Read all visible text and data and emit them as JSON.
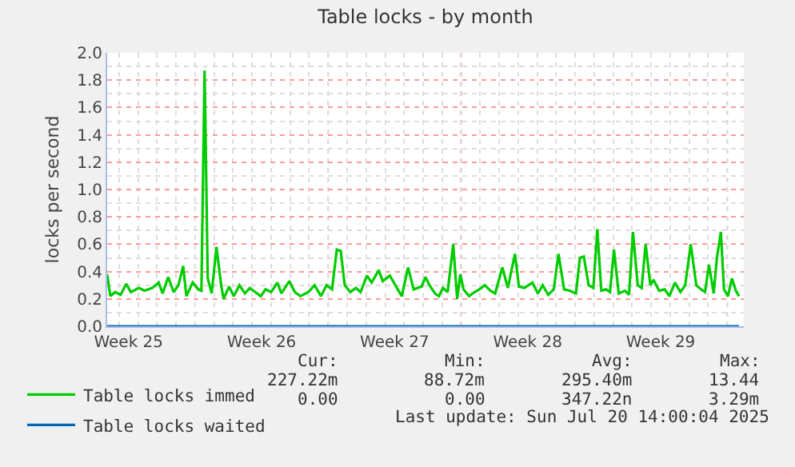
{
  "chart_data": {
    "type": "line",
    "title": "Table locks - by month",
    "ylabel": "locks per second",
    "xlim": [
      "2025-06-17T09:00",
      "2025-07-20T21:00"
    ],
    "xticks": [
      {
        "value": "2025-06-18T12:00",
        "label": "Week 25"
      },
      {
        "value": "2025-06-25T12:00",
        "label": "Week 26"
      },
      {
        "value": "2025-07-02T12:00",
        "label": "Week 27"
      },
      {
        "value": "2025-07-09T12:00",
        "label": "Week 28"
      },
      {
        "value": "2025-07-16T12:00",
        "label": "Week 29"
      }
    ],
    "ylim": [
      0,
      2.0
    ],
    "yticks": [
      {
        "value": 0,
        "label": "0.0"
      },
      {
        "value": 0.2,
        "label": "0.2"
      },
      {
        "value": 0.4,
        "label": "0.4"
      },
      {
        "value": 0.6,
        "label": "0.6"
      },
      {
        "value": 0.8,
        "label": "0.8"
      },
      {
        "value": 1.0,
        "label": "1.0"
      },
      {
        "value": 1.2,
        "label": "1.2"
      },
      {
        "value": 1.4,
        "label": "1.4"
      },
      {
        "value": 1.6,
        "label": "1.6"
      },
      {
        "value": 1.8,
        "label": "1.8"
      },
      {
        "value": 2.0,
        "label": "2.0"
      }
    ],
    "grid": true,
    "legend": "bottom left",
    "marker": "none",
    "line_style": "solid",
    "ref_lines": [
      {
        "axis": "x",
        "value": "2025-06-22",
        "color": "#ff8080",
        "line_style": "dotted"
      },
      {
        "axis": "x",
        "value": "2025-06-29",
        "color": "#ff8080",
        "line_style": "dotted"
      },
      {
        "axis": "x",
        "value": "2025-07-06",
        "color": "#ff8080",
        "line_style": "dotted"
      },
      {
        "axis": "x",
        "value": "2025-07-13",
        "color": "#ff8080",
        "line_style": "dotted"
      },
      {
        "axis": "x",
        "value": "2025-07-20",
        "color": "#ff8080",
        "line_style": "dotted"
      }
    ],
    "series": [
      {
        "name": "Table locks immed",
        "color": "#00cc00",
        "x": [
          "2025-06-17T09:00",
          "2025-06-17T13:00",
          "2025-06-17T19:00",
          "2025-06-18T02:00",
          "2025-06-18T09:00",
          "2025-06-18T15:00",
          "2025-06-19T01:00",
          "2025-06-19T08:00",
          "2025-06-19T18:00",
          "2025-06-20T02:00",
          "2025-06-20T07:00",
          "2025-06-20T14:00",
          "2025-06-20T21:00",
          "2025-06-21T03:00",
          "2025-06-21T09:00",
          "2025-06-21T13:00",
          "2025-06-21T21:00",
          "2025-06-22T04:00",
          "2025-06-22T08:00",
          "2025-06-22T12:00",
          "2025-06-22T16:00",
          "2025-06-22T21:00",
          "2025-06-23T03:00",
          "2025-06-23T09:00",
          "2025-06-23T12:00",
          "2025-06-23T19:00",
          "2025-06-24T01:00",
          "2025-06-24T08:00",
          "2025-06-24T15:00",
          "2025-06-24T21:00",
          "2025-06-25T04:00",
          "2025-06-25T11:00",
          "2025-06-25T17:00",
          "2025-06-26T00:00",
          "2025-06-26T08:00",
          "2025-06-26T13:00",
          "2025-06-26T23:00",
          "2025-06-27T06:00",
          "2025-06-27T13:00",
          "2025-06-27T23:00",
          "2025-06-28T07:00",
          "2025-06-28T15:00",
          "2025-06-28T22:00",
          "2025-06-29T05:00",
          "2025-06-29T11:00",
          "2025-06-29T16:00",
          "2025-06-29T21:00",
          "2025-06-30T04:00",
          "2025-06-30T11:00",
          "2025-06-30T17:00",
          "2025-07-01T01:00",
          "2025-07-01T07:00",
          "2025-07-01T16:00",
          "2025-07-01T21:00",
          "2025-07-02T06:00",
          "2025-07-02T13:00",
          "2025-07-02T21:00",
          "2025-07-03T05:00",
          "2025-07-03T12:00",
          "2025-07-03T22:00",
          "2025-07-04T03:00",
          "2025-07-04T08:00",
          "2025-07-04T15:00",
          "2025-07-04T20:00",
          "2025-07-05T01:00",
          "2025-07-05T07:00",
          "2025-07-05T14:00",
          "2025-07-05T19:00",
          "2025-07-05T23:00",
          "2025-07-06T03:00",
          "2025-07-06T10:00",
          "2025-07-06T17:00",
          "2025-07-06T23:00",
          "2025-07-07T06:00",
          "2025-07-07T13:00",
          "2025-07-07T19:00",
          "2025-07-08T04:00",
          "2025-07-08T11:00",
          "2025-07-08T20:00",
          "2025-07-09T01:00",
          "2025-07-09T08:00",
          "2025-07-09T18:00",
          "2025-07-10T01:00",
          "2025-07-10T07:00",
          "2025-07-10T14:00",
          "2025-07-10T21:00",
          "2025-07-11T03:00",
          "2025-07-11T10:00",
          "2025-07-11T17:00",
          "2025-07-12T01:00",
          "2025-07-12T06:00",
          "2025-07-12T11:00",
          "2025-07-12T17:00",
          "2025-07-12T23:00",
          "2025-07-13T04:00",
          "2025-07-13T09:00",
          "2025-07-13T15:00",
          "2025-07-13T20:00",
          "2025-07-14T01:00",
          "2025-07-14T07:00",
          "2025-07-14T15:00",
          "2025-07-14T20:00",
          "2025-07-15T01:00",
          "2025-07-15T07:00",
          "2025-07-15T12:00",
          "2025-07-15T17:00",
          "2025-07-15T23:00",
          "2025-07-16T03:00",
          "2025-07-16T10:00",
          "2025-07-16T17:00",
          "2025-07-16T23:00",
          "2025-07-17T06:00",
          "2025-07-17T13:00",
          "2025-07-17T19:00",
          "2025-07-18T02:00",
          "2025-07-18T09:00",
          "2025-07-18T15:00",
          "2025-07-18T20:00",
          "2025-07-19T01:00",
          "2025-07-19T07:00",
          "2025-07-19T11:00",
          "2025-07-19T16:00",
          "2025-07-19T20:00",
          "2025-07-20T01:00",
          "2025-07-20T06:00",
          "2025-07-20T11:00",
          "2025-07-20T15:00"
        ],
        "values": [
          0.38,
          0.22,
          0.25,
          0.23,
          0.31,
          0.25,
          0.28,
          0.26,
          0.28,
          0.32,
          0.24,
          0.36,
          0.25,
          0.3,
          0.44,
          0.22,
          0.32,
          0.27,
          0.26,
          1.87,
          0.35,
          0.24,
          0.58,
          0.3,
          0.2,
          0.29,
          0.22,
          0.3,
          0.24,
          0.28,
          0.25,
          0.22,
          0.27,
          0.25,
          0.32,
          0.24,
          0.33,
          0.25,
          0.22,
          0.25,
          0.3,
          0.22,
          0.3,
          0.27,
          0.56,
          0.55,
          0.3,
          0.25,
          0.28,
          0.25,
          0.37,
          0.32,
          0.41,
          0.33,
          0.37,
          0.3,
          0.22,
          0.43,
          0.27,
          0.29,
          0.36,
          0.3,
          0.24,
          0.22,
          0.28,
          0.25,
          0.6,
          0.2,
          0.38,
          0.27,
          0.22,
          0.25,
          0.27,
          0.3,
          0.26,
          0.24,
          0.43,
          0.28,
          0.53,
          0.29,
          0.28,
          0.32,
          0.24,
          0.3,
          0.23,
          0.27,
          0.53,
          0.27,
          0.26,
          0.24,
          0.5,
          0.51,
          0.3,
          0.28,
          0.71,
          0.26,
          0.27,
          0.25,
          0.56,
          0.24,
          0.26,
          0.23,
          0.69,
          0.3,
          0.28,
          0.6,
          0.3,
          0.34,
          0.26,
          0.27,
          0.22,
          0.32,
          0.25,
          0.3,
          0.6,
          0.3,
          0.27,
          0.25,
          0.45,
          0.24,
          0.5,
          0.69,
          0.27,
          0.22,
          0.35,
          0.26,
          0.22
        ]
      },
      {
        "name": "Table locks waited",
        "color": "#0066b3",
        "x": [
          "2025-06-17T09:00",
          "2025-07-20T15:00"
        ],
        "values": [
          0,
          0
        ]
      }
    ],
    "annotations": [
      "Cur:",
      "Min:",
      "Avg:",
      "Max:",
      "227.22m",
      "88.72m",
      "295.40m",
      "13.44",
      "0.00",
      "0.00",
      "347.22n",
      "3.29m",
      "Last update: Sun Jul 20 14:00:04 2025"
    ]
  }
}
